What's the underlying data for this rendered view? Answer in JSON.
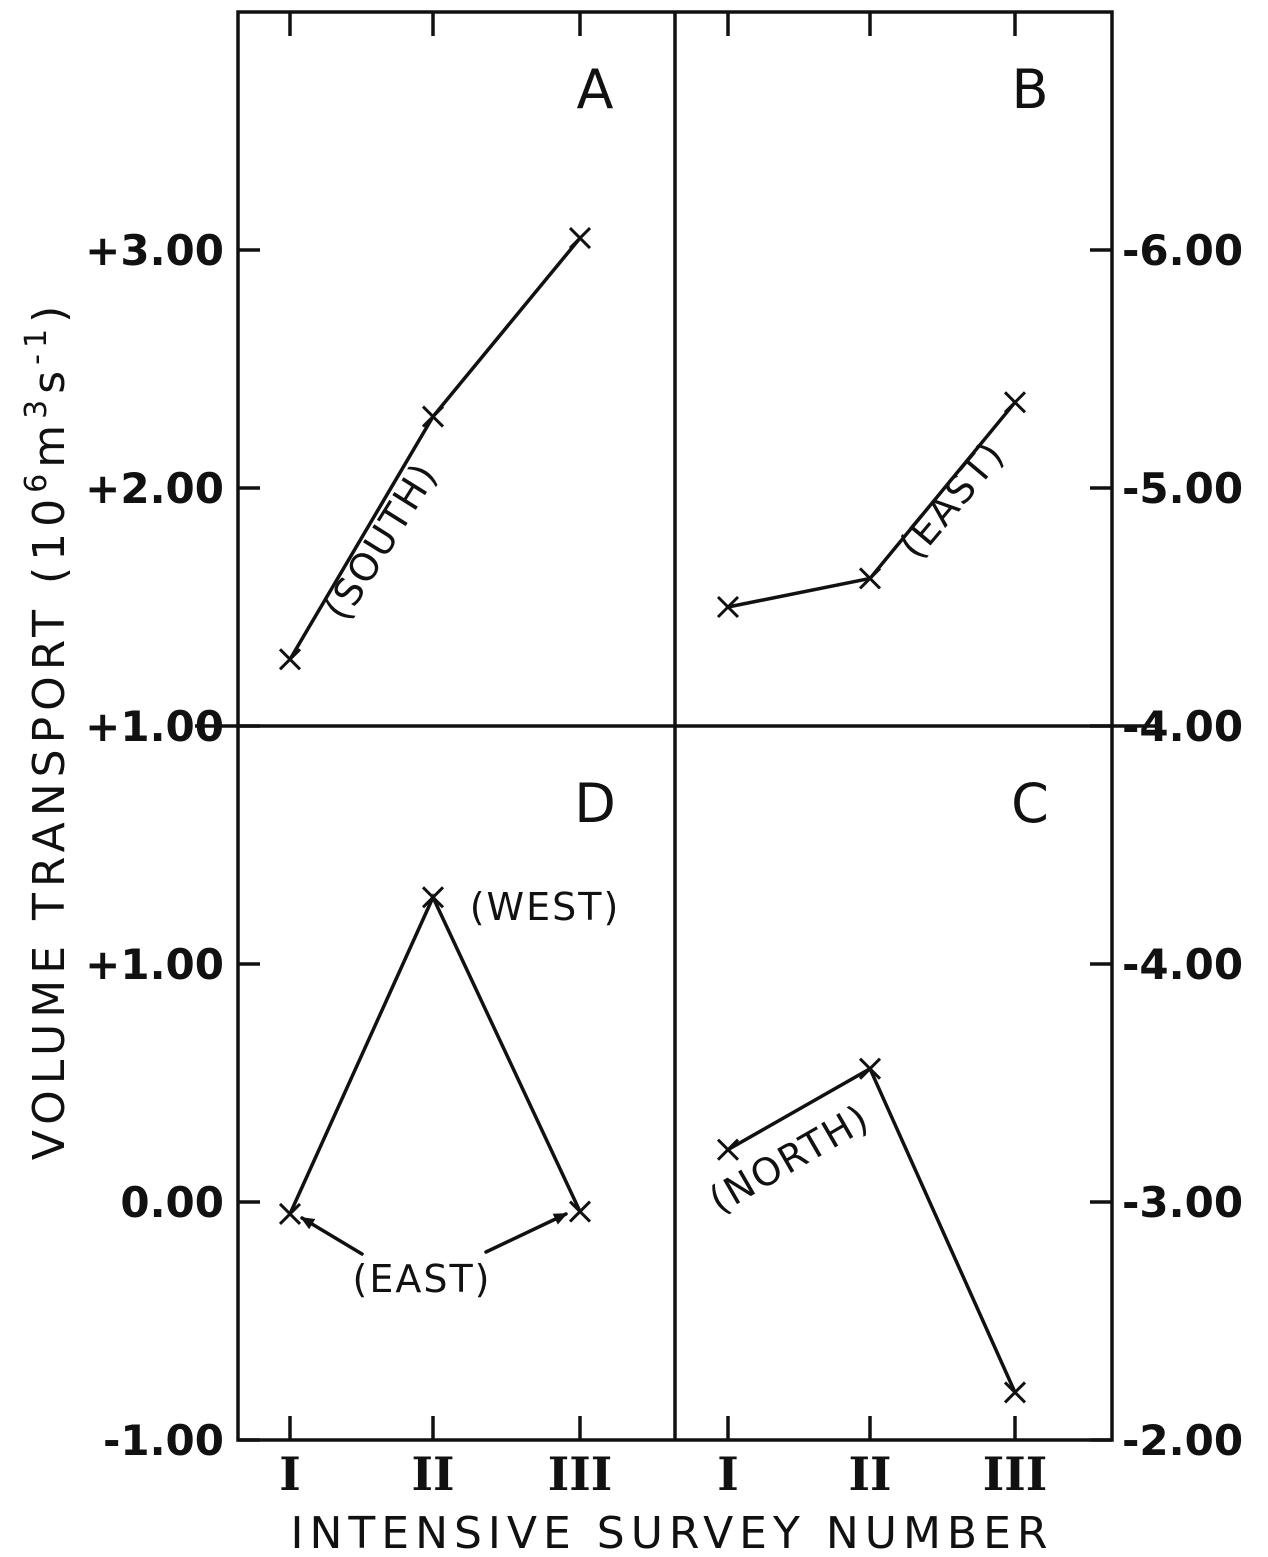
{
  "chart_data": [
    {
      "type": "line",
      "panel": "A",
      "categories": [
        "I",
        "II",
        "III"
      ],
      "values": [
        1.28,
        2.3,
        3.05
      ],
      "axis": "left",
      "ylim": [
        1.0,
        4.0
      ],
      "yticks": [
        1.0,
        2.0,
        3.0
      ],
      "yticklabels": [
        "+1.00",
        "+2.00",
        "+3.00"
      ],
      "annotations": [
        "(SOUTH)"
      ]
    },
    {
      "type": "line",
      "panel": "B",
      "categories": [
        "I",
        "II",
        "III"
      ],
      "values": [
        -4.5,
        -4.62,
        -5.36
      ],
      "axis": "right",
      "ylim": [
        -4.0,
        -7.0
      ],
      "yticks": [
        -4.0,
        -5.0,
        -6.0
      ],
      "yticklabels": [
        "-4.00",
        "-5.00",
        "-6.00"
      ],
      "annotations": [
        "(EAST)"
      ]
    },
    {
      "type": "line",
      "panel": "D",
      "categories": [
        "I",
        "II",
        "III"
      ],
      "values": [
        -0.05,
        1.28,
        -0.04
      ],
      "axis": "left",
      "ylim": [
        -1.0,
        2.0
      ],
      "yticks": [
        -1.0,
        0.0,
        1.0
      ],
      "yticklabels": [
        "-1.00",
        "0.00",
        "+1.00"
      ],
      "annotations": [
        "(WEST)",
        "(EAST)"
      ]
    },
    {
      "type": "line",
      "panel": "C",
      "categories": [
        "I",
        "II",
        "III"
      ],
      "values": [
        -3.22,
        -3.56,
        -2.2
      ],
      "axis": "right",
      "ylim": [
        -2.0,
        -5.0
      ],
      "yticks": [
        -2.0,
        -3.0,
        -4.0
      ],
      "yticklabels": [
        "-2.00",
        "-3.00",
        "-4.00"
      ],
      "annotations": [
        "(NORTH)"
      ]
    }
  ],
  "ylabel": "VOLUME TRANSPORT (10",
  "ylabel_sup1": "6",
  "ylabel_mid": "m",
  "ylabel_sup2": "3",
  "ylabel_mid2": "s",
  "ylabel_sup3": "-1",
  "ylabel_end": ")",
  "xlabel": "INTENSIVE SURVEY NUMBER"
}
